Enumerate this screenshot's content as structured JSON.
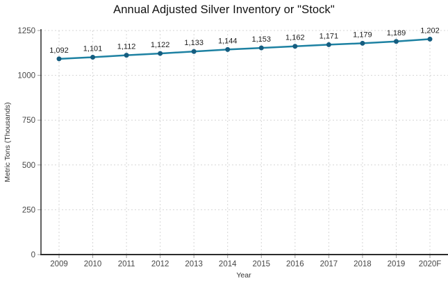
{
  "chart_data": {
    "type": "line",
    "title": "Annual Adjusted Silver Inventory or \"Stock\"",
    "xlabel": "Year",
    "ylabel": "Metric Tons (Thousands)",
    "categories": [
      "2009",
      "2010",
      "2011",
      "2012",
      "2013",
      "2014",
      "2015",
      "2016",
      "2017",
      "2018",
      "2019",
      "2020F"
    ],
    "values": [
      1092,
      1101,
      1112,
      1122,
      1133,
      1144,
      1153,
      1162,
      1171,
      1179,
      1189,
      1202
    ],
    "value_labels": [
      "1,092",
      "1,101",
      "1,112",
      "1,122",
      "1,133",
      "1,144",
      "1,153",
      "1,162",
      "1,171",
      "1,179",
      "1,189",
      "1,202"
    ],
    "yticks": [
      0,
      250,
      500,
      750,
      1000,
      1250
    ],
    "ytick_labels": [
      "0",
      "250",
      "500",
      "750",
      "1000",
      "1250"
    ],
    "ylim": [
      0,
      1250
    ],
    "grid": true,
    "legend_position": "none",
    "colors": {
      "line": "#1d81a2",
      "marker": "#155d80",
      "grid": "#d5d5d5",
      "axis": "#2b2b2b",
      "tick": "#9a9a9a"
    }
  }
}
